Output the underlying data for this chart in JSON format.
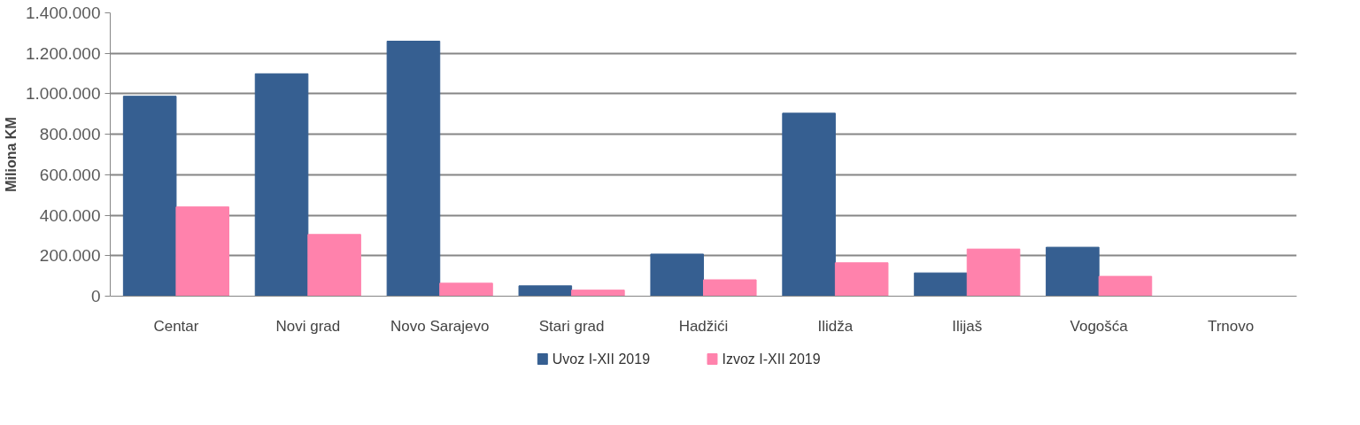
{
  "chart_data": {
    "type": "bar",
    "ylabel": "Miliona KM",
    "categories": [
      "Centar",
      "Novi grad",
      "Novo Sarajevo",
      "Stari grad",
      "Hadžići",
      "Ilidža",
      "Ilijaš",
      "Vogošća",
      "Trnovo"
    ],
    "series": [
      {
        "name": "Uvoz I-XII 2019",
        "color": "#365f91",
        "values": [
          988000,
          1099000,
          1260000,
          51000,
          208000,
          904000,
          115000,
          242000,
          0
        ]
      },
      {
        "name": "Izvoz I-XII 2019",
        "color": "#ff82ac",
        "values": [
          441000,
          305000,
          64000,
          30000,
          81000,
          165000,
          233000,
          98000,
          0
        ]
      }
    ],
    "ylim": [
      0,
      1400000
    ],
    "yticks": [
      {
        "value": 0,
        "label": "0"
      },
      {
        "value": 200000,
        "label": "200.000"
      },
      {
        "value": 400000,
        "label": "400.000"
      },
      {
        "value": 600000,
        "label": "600.000"
      },
      {
        "value": 800000,
        "label": "800.000"
      },
      {
        "value": 1000000,
        "label": "1.000.000"
      },
      {
        "value": 1200000,
        "label": "1.200.000"
      },
      {
        "value": 1400000,
        "label": "1.400.000"
      }
    ],
    "grid": "y",
    "legend": "bottom"
  }
}
